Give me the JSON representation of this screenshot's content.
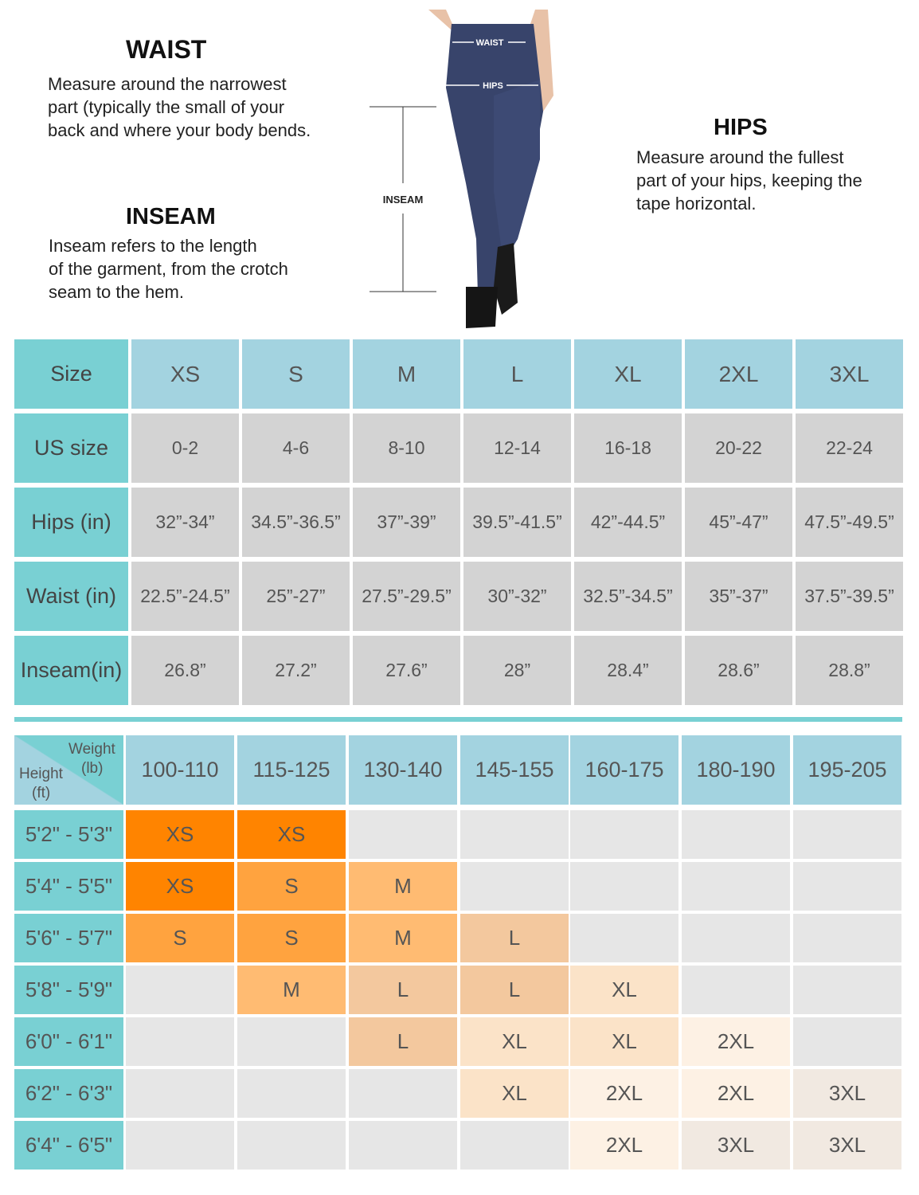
{
  "waist": {
    "title": "WAIST",
    "text": [
      "Measure around the narrowest",
      "part (typically the small of your",
      "back and where your body bends."
    ]
  },
  "inseam": {
    "title": "INSEAM",
    "text": [
      "Inseam refers to the length",
      "of the garment, from the crotch",
      "seam to the hem."
    ]
  },
  "hips": {
    "title": "HIPS",
    "text": [
      "Measure around the fullest",
      "part of your hips, keeping the",
      "tape horizontal."
    ]
  },
  "figure": {
    "waist_label": "WAIST",
    "hips_label": "HIPS",
    "inseam_label": "INSEAM"
  },
  "size_table": {
    "rows": [
      {
        "label": "Size",
        "values": [
          "XS",
          "S",
          "M",
          "L",
          "XL",
          "2XL",
          "3XL"
        ]
      },
      {
        "label": "US size",
        "values": [
          "0-2",
          "4-6",
          "8-10",
          "12-14",
          "16-18",
          "20-22",
          "22-24"
        ]
      },
      {
        "label": "Hips (in)",
        "values": [
          "32”-34”",
          "34.5”-36.5”",
          "37”-39”",
          "39.5”-41.5”",
          "42”-44.5”",
          "45”-47”",
          "47.5”-49.5”"
        ]
      },
      {
        "label": "Waist (in)",
        "values": [
          "22.5”-24.5”",
          "25”-27”",
          "27.5”-29.5”",
          "30”-32”",
          "32.5”-34.5”",
          "35”-37”",
          "37.5”-39.5”"
        ]
      },
      {
        "label": "Inseam(in)",
        "values": [
          "26.8”",
          "27.2”",
          "27.6”",
          "28”",
          "28.4”",
          "28.6”",
          "28.8”"
        ]
      }
    ]
  },
  "fit_table": {
    "corner": {
      "weight": "Weight",
      "weight_unit": "(lb)",
      "height": "Height",
      "height_unit": "(ft)"
    },
    "weights": [
      "100-110",
      "115-125",
      "130-140",
      "145-155",
      "160-175",
      "180-190",
      "195-205"
    ],
    "rows": [
      {
        "height": "5'2\" - 5'3\"",
        "cells": [
          "XS",
          "XS",
          "",
          "",
          "",
          "",
          ""
        ]
      },
      {
        "height": "5'4\" - 5'5\"",
        "cells": [
          "XS",
          "S",
          "M",
          "",
          "",
          "",
          ""
        ]
      },
      {
        "height": "5'6\" - 5'7\"",
        "cells": [
          "S",
          "S",
          "M",
          "L",
          "",
          "",
          ""
        ]
      },
      {
        "height": "5'8\" - 5'9\"",
        "cells": [
          "",
          "M",
          "L",
          "L",
          "XL",
          "",
          ""
        ]
      },
      {
        "height": "6'0\" - 6'1\"",
        "cells": [
          "",
          "",
          "L",
          "XL",
          "XL",
          "2XL",
          ""
        ]
      },
      {
        "height": "6'2\" - 6'3\"",
        "cells": [
          "",
          "",
          "",
          "XL",
          "2XL",
          "2XL",
          "3XL"
        ]
      },
      {
        "height": "6'4\" - 6'5\"",
        "cells": [
          "",
          "",
          "",
          "",
          "2XL",
          "3XL",
          "3XL"
        ]
      }
    ],
    "colors": [
      [
        "#ff8400",
        "#ff8400",
        "",
        "",
        "",
        "",
        ""
      ],
      [
        "#ff8400",
        "#ffa33f",
        "#ffbb72",
        "",
        "",
        "",
        ""
      ],
      [
        "#ffa33f",
        "#ffa33f",
        "#ffbb72",
        "#f3c89e",
        "",
        "",
        ""
      ],
      [
        "",
        "#ffbb72",
        "#f3c89e",
        "#f3c89e",
        "#fbe3c8",
        "",
        ""
      ],
      [
        "",
        "",
        "#f3c89e",
        "#fbe3c8",
        "#fbe3c8",
        "#fdf1e4",
        ""
      ],
      [
        "",
        "",
        "",
        "#fbe3c8",
        "#fdf1e4",
        "#fdf1e4",
        "#f1e9e1"
      ],
      [
        "",
        "",
        "",
        "",
        "#fdf1e4",
        "#f1e9e1",
        "#f1e9e1"
      ]
    ]
  },
  "colors": {
    "teal": "#79d0d3",
    "light_blue": "#a3d3e0",
    "gray": "#d3d3d3",
    "light_gray": "#e6e6e6"
  }
}
